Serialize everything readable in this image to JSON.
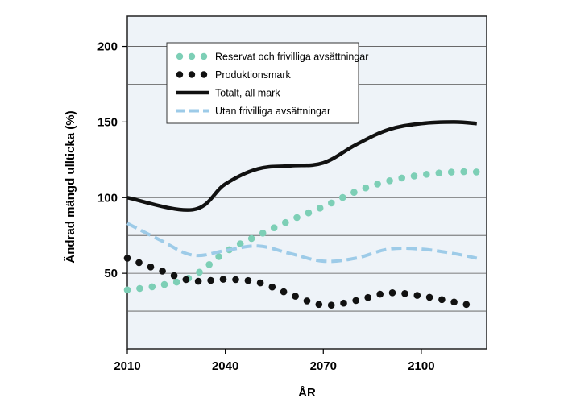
{
  "chart_data": {
    "type": "line",
    "xlabel": "ÅR",
    "ylabel": "Ändrad mängd ullticka (%)",
    "xlim": [
      2010,
      2120
    ],
    "ylim": [
      0,
      220
    ],
    "xticks": [
      2010,
      2040,
      2070,
      2100
    ],
    "yticks": [
      50,
      100,
      150,
      200
    ],
    "grid": "horizontal",
    "legend_placement": "top",
    "background_color": "#eef3f8",
    "series": [
      {
        "name": "Reservat och frivilliga avsättningar",
        "style": "dotted",
        "color": "#7dcfb6",
        "x": [
          2010,
          2020,
          2030,
          2040,
          2050,
          2060,
          2070,
          2080,
          2090,
          2100,
          2110,
          2117
        ],
        "y": [
          39,
          42,
          48,
          64,
          75,
          85,
          94,
          104,
          111,
          115,
          117,
          117
        ]
      },
      {
        "name": "Produktionsmark",
        "style": "dotted",
        "color": "#111111",
        "x": [
          2010,
          2020,
          2030,
          2040,
          2050,
          2060,
          2070,
          2080,
          2090,
          2100,
          2110,
          2117
        ],
        "y": [
          60,
          52,
          45,
          46,
          44,
          36,
          29,
          32,
          37,
          35,
          31,
          28
        ]
      },
      {
        "name": "Totalt, all mark",
        "style": "solid",
        "color": "#111111",
        "x": [
          2010,
          2030,
          2040,
          2050,
          2060,
          2070,
          2080,
          2090,
          2100,
          2110,
          2117
        ],
        "y": [
          100,
          92,
          109,
          119,
          121,
          123,
          135,
          145,
          149,
          150,
          149
        ]
      },
      {
        "name": "Utan frivilliga avsättningar",
        "style": "dashed",
        "color": "#9dcbe8",
        "x": [
          2010,
          2020,
          2030,
          2040,
          2050,
          2060,
          2070,
          2080,
          2090,
          2100,
          2110,
          2117
        ],
        "y": [
          83,
          72,
          62,
          65,
          68,
          63,
          58,
          60,
          66,
          66,
          63,
          60
        ]
      }
    ]
  }
}
